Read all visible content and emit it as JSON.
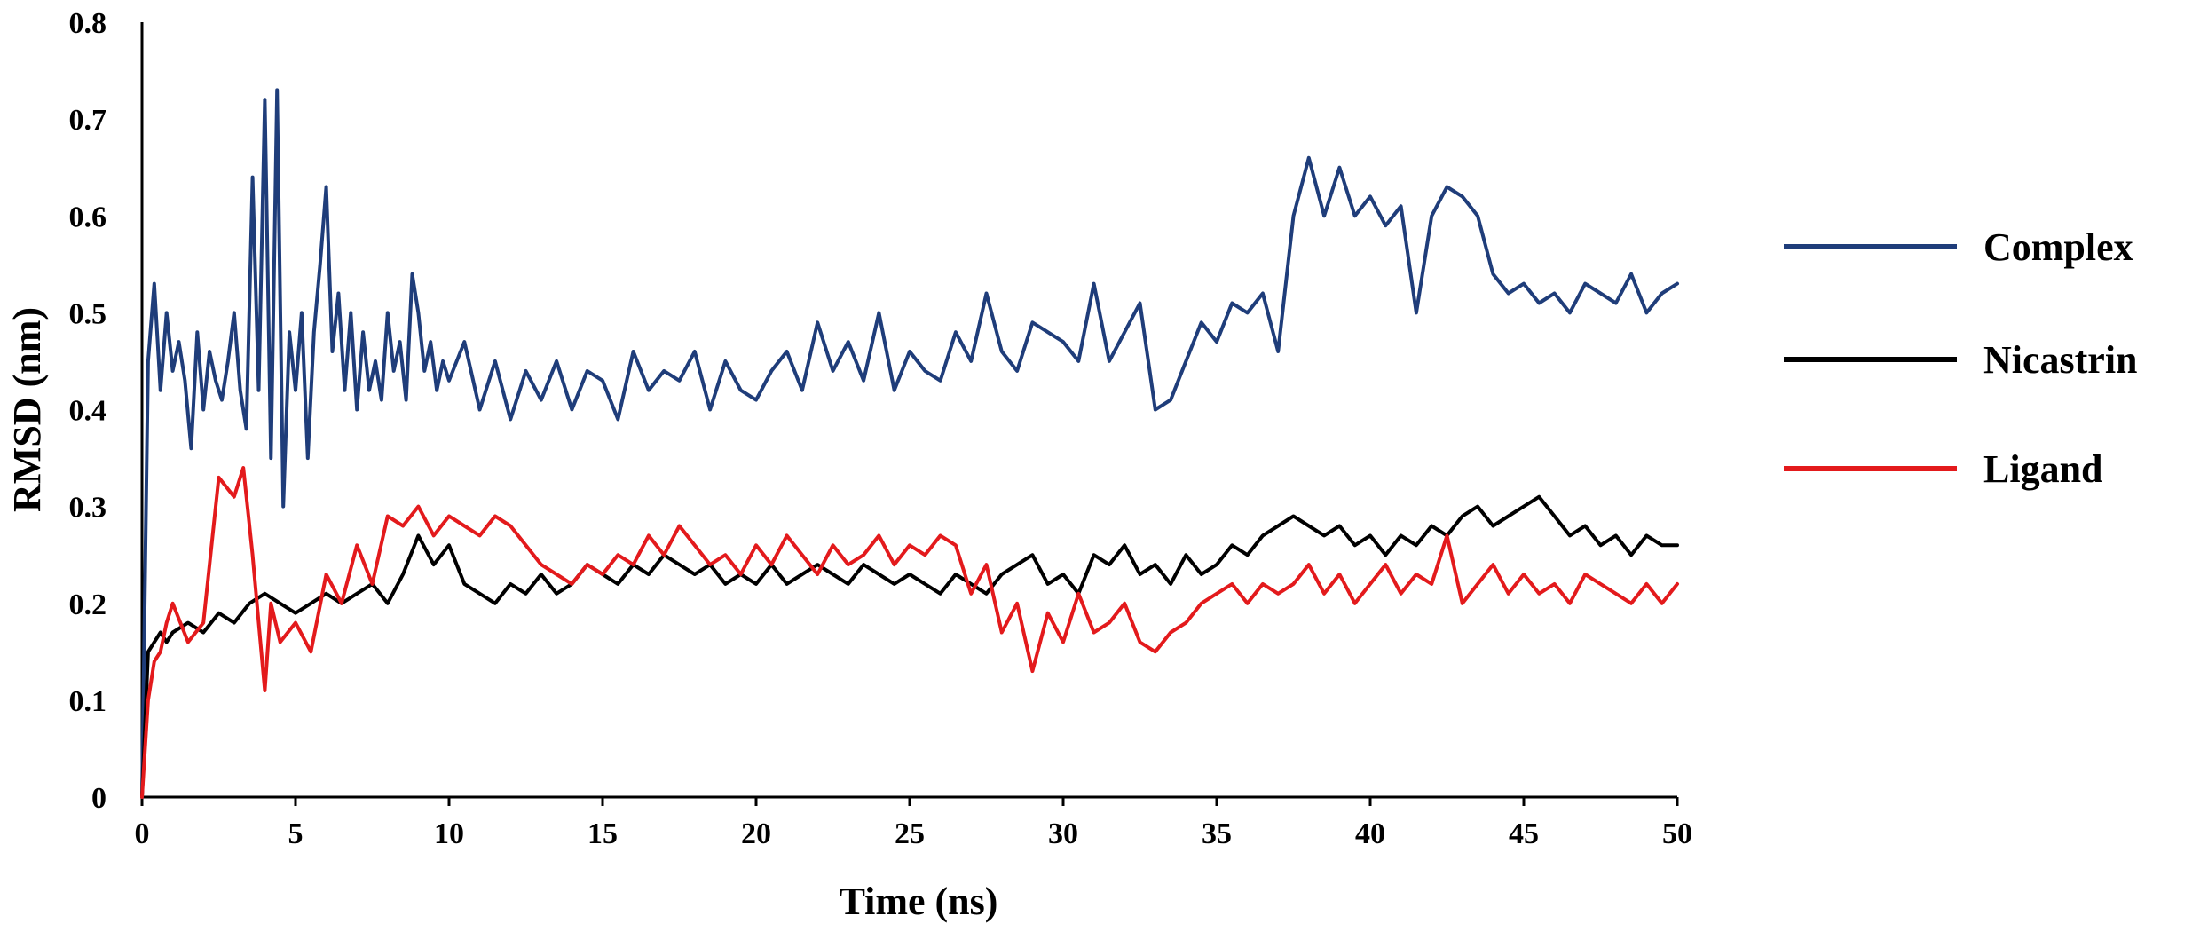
{
  "chart_data": {
    "type": "line",
    "xlabel": "Time (ns)",
    "ylabel": "RMSD (nm)",
    "xlim": [
      0,
      50
    ],
    "ylim": [
      0,
      0.8
    ],
    "x_ticks": [
      0,
      5,
      10,
      15,
      20,
      25,
      30,
      35,
      40,
      45,
      50
    ],
    "y_ticks": [
      0,
      0.1,
      0.2,
      0.3,
      0.4,
      0.5,
      0.6,
      0.7,
      0.8
    ],
    "x_tick_labels": [
      "0",
      "5",
      "10",
      "15",
      "20",
      "25",
      "30",
      "35",
      "40",
      "45",
      "50"
    ],
    "y_tick_labels": [
      "0",
      "0.1",
      "0.2",
      "0.3",
      "0.4",
      "0.5",
      "0.6",
      "0.7",
      "0.8"
    ],
    "grid": false,
    "legend_position": "right",
    "series": [
      {
        "name": "Complex",
        "color": "#1f3d7a",
        "x": [
          0,
          0.2,
          0.4,
          0.6,
          0.8,
          1,
          1.2,
          1.4,
          1.6,
          1.8,
          2,
          2.2,
          2.4,
          2.6,
          2.8,
          3,
          3.2,
          3.4,
          3.6,
          3.8,
          4,
          4.2,
          4.4,
          4.6,
          4.8,
          5,
          5.2,
          5.4,
          5.6,
          5.8,
          6,
          6.2,
          6.4,
          6.6,
          6.8,
          7,
          7.2,
          7.4,
          7.6,
          7.8,
          8,
          8.2,
          8.4,
          8.6,
          8.8,
          9,
          9.2,
          9.4,
          9.6,
          9.8,
          10,
          10.5,
          11,
          11.5,
          12,
          12.5,
          13,
          13.5,
          14,
          14.5,
          15,
          15.5,
          16,
          16.5,
          17,
          17.5,
          18,
          18.5,
          19,
          19.5,
          20,
          20.5,
          21,
          21.5,
          22,
          22.5,
          23,
          23.5,
          24,
          24.5,
          25,
          25.5,
          26,
          26.5,
          27,
          27.5,
          28,
          28.5,
          29,
          29.5,
          30,
          30.5,
          31,
          31.5,
          32,
          32.5,
          33,
          33.5,
          34,
          34.5,
          35,
          35.5,
          36,
          36.5,
          37,
          37.5,
          38,
          38.5,
          39,
          39.5,
          40,
          40.5,
          41,
          41.5,
          42,
          42.5,
          43,
          43.5,
          44,
          44.5,
          45,
          45.5,
          46,
          46.5,
          47,
          47.5,
          48,
          48.5,
          49,
          49.5,
          50
        ],
        "y": [
          0.0,
          0.45,
          0.53,
          0.42,
          0.5,
          0.44,
          0.47,
          0.43,
          0.36,
          0.48,
          0.4,
          0.46,
          0.43,
          0.41,
          0.45,
          0.5,
          0.42,
          0.38,
          0.64,
          0.42,
          0.72,
          0.35,
          0.73,
          0.3,
          0.48,
          0.42,
          0.5,
          0.35,
          0.48,
          0.55,
          0.63,
          0.46,
          0.52,
          0.42,
          0.5,
          0.4,
          0.48,
          0.42,
          0.45,
          0.41,
          0.5,
          0.44,
          0.47,
          0.41,
          0.54,
          0.5,
          0.44,
          0.47,
          0.42,
          0.45,
          0.43,
          0.47,
          0.4,
          0.45,
          0.39,
          0.44,
          0.41,
          0.45,
          0.4,
          0.44,
          0.43,
          0.39,
          0.46,
          0.42,
          0.44,
          0.43,
          0.46,
          0.4,
          0.45,
          0.42,
          0.41,
          0.44,
          0.46,
          0.42,
          0.49,
          0.44,
          0.47,
          0.43,
          0.5,
          0.42,
          0.46,
          0.44,
          0.43,
          0.48,
          0.45,
          0.52,
          0.46,
          0.44,
          0.49,
          0.48,
          0.47,
          0.45,
          0.53,
          0.45,
          0.48,
          0.51,
          0.4,
          0.41,
          0.45,
          0.49,
          0.47,
          0.51,
          0.5,
          0.52,
          0.46,
          0.6,
          0.66,
          0.6,
          0.65,
          0.6,
          0.62,
          0.59,
          0.61,
          0.5,
          0.6,
          0.63,
          0.62,
          0.6,
          0.54,
          0.52,
          0.53,
          0.51,
          0.52,
          0.5,
          0.53,
          0.52,
          0.51,
          0.54,
          0.5,
          0.52,
          0.53
        ]
      },
      {
        "name": "Nicastrin",
        "color": "#000000",
        "x": [
          0,
          0.2,
          0.4,
          0.6,
          0.8,
          1,
          1.5,
          2,
          2.5,
          3,
          3.5,
          4,
          4.5,
          5,
          5.5,
          6,
          6.5,
          7,
          7.5,
          8,
          8.5,
          9,
          9.5,
          10,
          10.5,
          11,
          11.5,
          12,
          12.5,
          13,
          13.5,
          14,
          14.5,
          15,
          15.5,
          16,
          16.5,
          17,
          17.5,
          18,
          18.5,
          19,
          19.5,
          20,
          20.5,
          21,
          21.5,
          22,
          22.5,
          23,
          23.5,
          24,
          24.5,
          25,
          25.5,
          26,
          26.5,
          27,
          27.5,
          28,
          28.5,
          29,
          29.5,
          30,
          30.5,
          31,
          31.5,
          32,
          32.5,
          33,
          33.5,
          34,
          34.5,
          35,
          35.5,
          36,
          36.5,
          37,
          37.5,
          38,
          38.5,
          39,
          39.5,
          40,
          40.5,
          41,
          41.5,
          42,
          42.5,
          43,
          43.5,
          44,
          44.5,
          45,
          45.5,
          46,
          46.5,
          47,
          47.5,
          48,
          48.5,
          49,
          49.5,
          50
        ],
        "y": [
          0.0,
          0.15,
          0.16,
          0.17,
          0.16,
          0.17,
          0.18,
          0.17,
          0.19,
          0.18,
          0.2,
          0.21,
          0.2,
          0.19,
          0.2,
          0.21,
          0.2,
          0.21,
          0.22,
          0.2,
          0.23,
          0.27,
          0.24,
          0.26,
          0.22,
          0.21,
          0.2,
          0.22,
          0.21,
          0.23,
          0.21,
          0.22,
          0.24,
          0.23,
          0.22,
          0.24,
          0.23,
          0.25,
          0.24,
          0.23,
          0.24,
          0.22,
          0.23,
          0.22,
          0.24,
          0.22,
          0.23,
          0.24,
          0.23,
          0.22,
          0.24,
          0.23,
          0.22,
          0.23,
          0.22,
          0.21,
          0.23,
          0.22,
          0.21,
          0.23,
          0.24,
          0.25,
          0.22,
          0.23,
          0.21,
          0.25,
          0.24,
          0.26,
          0.23,
          0.24,
          0.22,
          0.25,
          0.23,
          0.24,
          0.26,
          0.25,
          0.27,
          0.28,
          0.29,
          0.28,
          0.27,
          0.28,
          0.26,
          0.27,
          0.25,
          0.27,
          0.26,
          0.28,
          0.27,
          0.29,
          0.3,
          0.28,
          0.29,
          0.3,
          0.31,
          0.29,
          0.27,
          0.28,
          0.26,
          0.27,
          0.25,
          0.27,
          0.26,
          0.26
        ]
      },
      {
        "name": "Ligand",
        "color": "#e31a1c",
        "x": [
          0,
          0.2,
          0.4,
          0.6,
          0.8,
          1,
          1.5,
          2,
          2.5,
          3,
          3.3,
          3.6,
          4,
          4.2,
          4.5,
          5,
          5.5,
          6,
          6.5,
          7,
          7.5,
          8,
          8.5,
          9,
          9.5,
          10,
          10.5,
          11,
          11.5,
          12,
          12.5,
          13,
          13.5,
          14,
          14.5,
          15,
          15.5,
          16,
          16.5,
          17,
          17.5,
          18,
          18.5,
          19,
          19.5,
          20,
          20.5,
          21,
          21.5,
          22,
          22.5,
          23,
          23.5,
          24,
          24.5,
          25,
          25.5,
          26,
          26.5,
          27,
          27.5,
          28,
          28.5,
          29,
          29.5,
          30,
          30.5,
          31,
          31.5,
          32,
          32.5,
          33,
          33.5,
          34,
          34.5,
          35,
          35.5,
          36,
          36.5,
          37,
          37.5,
          38,
          38.5,
          39,
          39.5,
          40,
          40.5,
          41,
          41.5,
          42,
          42.5,
          43,
          43.5,
          44,
          44.5,
          45,
          45.5,
          46,
          46.5,
          47,
          47.5,
          48,
          48.5,
          49,
          49.5,
          50
        ],
        "y": [
          0.0,
          0.1,
          0.14,
          0.15,
          0.18,
          0.2,
          0.16,
          0.18,
          0.33,
          0.31,
          0.34,
          0.25,
          0.11,
          0.2,
          0.16,
          0.18,
          0.15,
          0.23,
          0.2,
          0.26,
          0.22,
          0.29,
          0.28,
          0.3,
          0.27,
          0.29,
          0.28,
          0.27,
          0.29,
          0.28,
          0.26,
          0.24,
          0.23,
          0.22,
          0.24,
          0.23,
          0.25,
          0.24,
          0.27,
          0.25,
          0.28,
          0.26,
          0.24,
          0.25,
          0.23,
          0.26,
          0.24,
          0.27,
          0.25,
          0.23,
          0.26,
          0.24,
          0.25,
          0.27,
          0.24,
          0.26,
          0.25,
          0.27,
          0.26,
          0.21,
          0.24,
          0.17,
          0.2,
          0.13,
          0.19,
          0.16,
          0.21,
          0.17,
          0.18,
          0.2,
          0.16,
          0.15,
          0.17,
          0.18,
          0.2,
          0.21,
          0.22,
          0.2,
          0.22,
          0.21,
          0.22,
          0.24,
          0.21,
          0.23,
          0.2,
          0.22,
          0.24,
          0.21,
          0.23,
          0.22,
          0.27,
          0.2,
          0.22,
          0.24,
          0.21,
          0.23,
          0.21,
          0.22,
          0.2,
          0.23,
          0.22,
          0.21,
          0.2,
          0.22,
          0.2,
          0.22
        ]
      }
    ]
  }
}
